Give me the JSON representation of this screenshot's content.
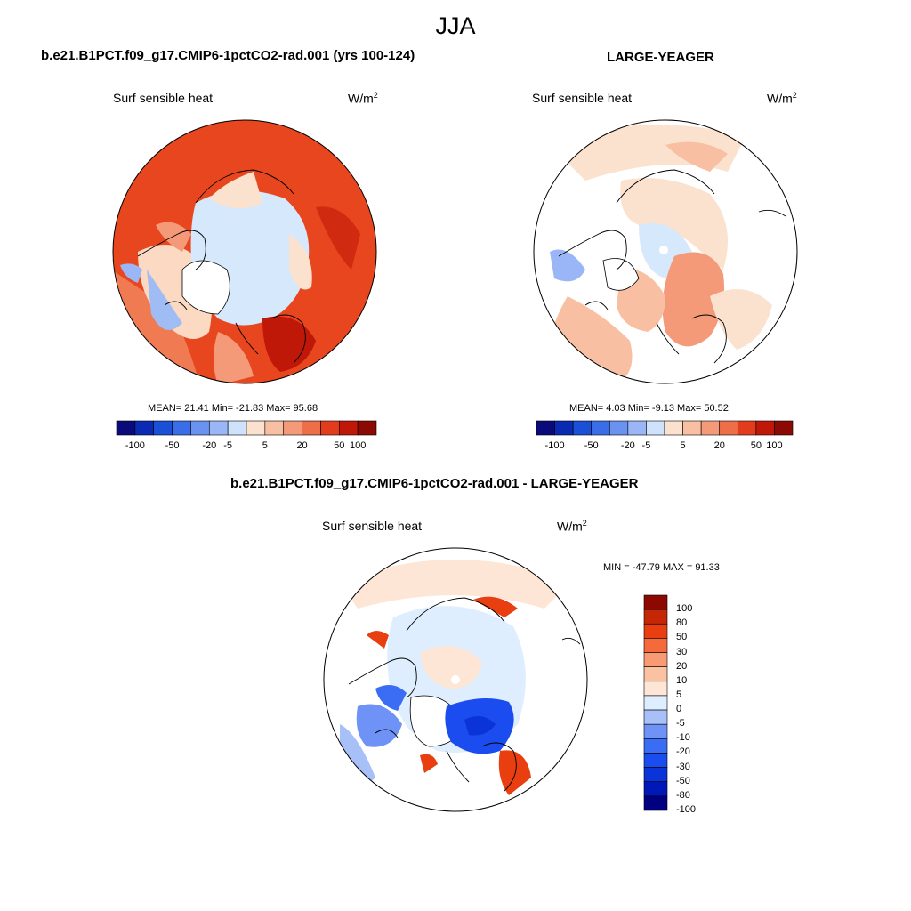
{
  "season": "JJA",
  "panels": [
    {
      "title": "b.e21.B1PCT.f09_g17.CMIP6-1pctCO2-rad.001 (yrs 100-124)",
      "variable": "Surf sensible heat",
      "units_base": "W/m",
      "units_exp": "2",
      "stats": "MEAN=  21.41  Min= -21.83  Max=  95.68",
      "colorbar": {
        "colors": [
          "#0a0a7a",
          "#0a2ab4",
          "#1a50d8",
          "#3a6ee8",
          "#6a92f0",
          "#9ab6f6",
          "#cfe2fb",
          "#fbe2cf",
          "#f9bfa2",
          "#f59a78",
          "#ef6e4a",
          "#e23c1c",
          "#c01808",
          "#8c0a04"
        ],
        "tick_labels": [
          "-100",
          "-50",
          "-20",
          "-5",
          "5",
          "20",
          "50",
          "100"
        ]
      }
    },
    {
      "title": "LARGE-YEAGER",
      "variable": "Surf sensible heat",
      "units_base": "W/m",
      "units_exp": "2",
      "stats": "MEAN=   4.03  Min=  -9.13  Max=  50.52",
      "colorbar": {
        "colors": [
          "#0a0a7a",
          "#0a2ab4",
          "#1a50d8",
          "#3a6ee8",
          "#6a92f0",
          "#9ab6f6",
          "#cfe2fb",
          "#fbe2cf",
          "#f9bfa2",
          "#f59a78",
          "#ef6e4a",
          "#e23c1c",
          "#c01808",
          "#8c0a04"
        ],
        "tick_labels": [
          "-100",
          "-50",
          "-20",
          "-5",
          "5",
          "20",
          "50",
          "100"
        ]
      }
    },
    {
      "title": "b.e21.B1PCT.f09_g17.CMIP6-1pctCO2-rad.001 - LARGE-YEAGER",
      "variable": "Surf sensible heat",
      "units_base": "W/m",
      "units_exp": "2",
      "stats": "MIN = -47.79 MAX =  91.33",
      "colorbar": {
        "colors": [
          "#000080",
          "#0018b8",
          "#0a34d8",
          "#1a4cf0",
          "#3a6cf4",
          "#6e92f6",
          "#a8c0f8",
          "#deeefe",
          "#fde6d6",
          "#fbc2a2",
          "#f89a74",
          "#f46a3a",
          "#e83e10",
          "#c42606",
          "#8c0800"
        ],
        "tick_labels": [
          "100",
          "80",
          "50",
          "30",
          "20",
          "10",
          "5",
          "0",
          "-5",
          "-10",
          "-20",
          "-30",
          "-50",
          "-80",
          "-100"
        ]
      }
    }
  ]
}
